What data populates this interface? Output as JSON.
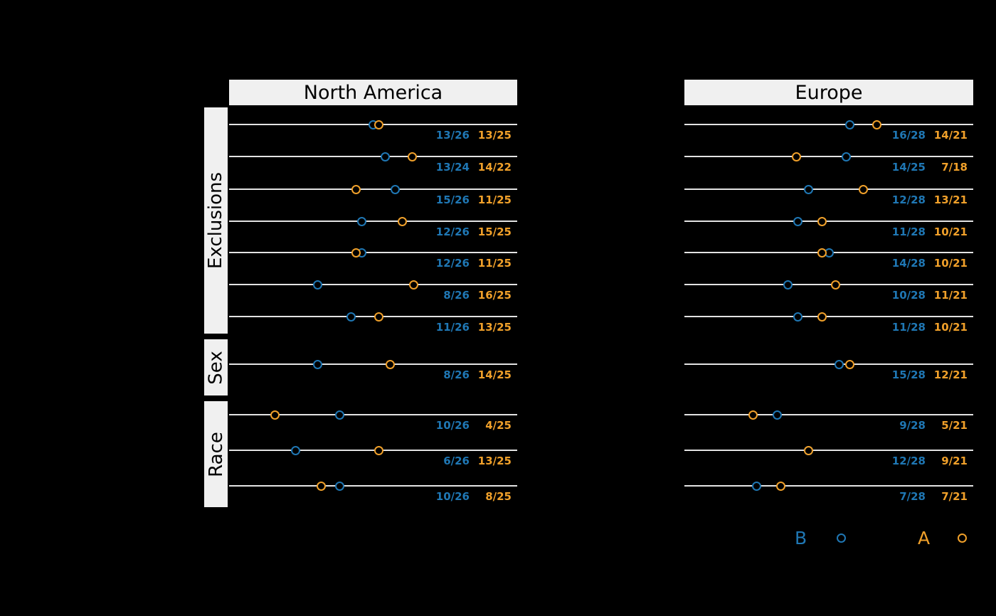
{
  "colors": {
    "background": "#000000",
    "label_box_bg": "#f0f0f0",
    "label_box_text": "#000000",
    "axis_line": "#e3e3e3",
    "series_b": "#1f77b4",
    "series_a": "#f0a02a"
  },
  "chart_data": {
    "type": "scatter",
    "x_range": [
      0,
      1
    ],
    "grid": false,
    "legend_position": "bottom-right",
    "series": [
      {
        "name": "B",
        "color": "#1f77b4",
        "marker": "open-circle"
      },
      {
        "name": "A",
        "color": "#f0a02a",
        "marker": "open-circle"
      }
    ],
    "row_groups": [
      {
        "label": "Exclusions",
        "rows": 7
      },
      {
        "label": "Sex",
        "rows": 1
      },
      {
        "label": "Race",
        "rows": 3
      }
    ],
    "panels": [
      {
        "title": "North America",
        "rows": [
          {
            "group": "Exclusions",
            "b": "13/26",
            "a": "13/25"
          },
          {
            "group": "Exclusions",
            "b": "13/24",
            "a": "14/22"
          },
          {
            "group": "Exclusions",
            "b": "15/26",
            "a": "11/25"
          },
          {
            "group": "Exclusions",
            "b": "12/26",
            "a": "15/25"
          },
          {
            "group": "Exclusions",
            "b": "12/26",
            "a": "11/25"
          },
          {
            "group": "Exclusions",
            "b": "8/26",
            "a": "16/25"
          },
          {
            "group": "Exclusions",
            "b": "11/26",
            "a": "13/25"
          },
          {
            "group": "Sex",
            "b": "8/26",
            "a": "14/25"
          },
          {
            "group": "Race",
            "b": "10/26",
            "a": "4/25"
          },
          {
            "group": "Race",
            "b": "6/26",
            "a": "13/25"
          },
          {
            "group": "Race",
            "b": "10/26",
            "a": "8/25"
          }
        ]
      },
      {
        "title": "Europe",
        "rows": [
          {
            "group": "Exclusions",
            "b": "16/28",
            "a": "14/21"
          },
          {
            "group": "Exclusions",
            "b": "14/25",
            "a": "7/18"
          },
          {
            "group": "Exclusions",
            "b": "12/28",
            "a": "13/21"
          },
          {
            "group": "Exclusions",
            "b": "11/28",
            "a": "10/21"
          },
          {
            "group": "Exclusions",
            "b": "14/28",
            "a": "10/21"
          },
          {
            "group": "Exclusions",
            "b": "10/28",
            "a": "11/21"
          },
          {
            "group": "Exclusions",
            "b": "11/28",
            "a": "10/21"
          },
          {
            "group": "Sex",
            "b": "15/28",
            "a": "12/21"
          },
          {
            "group": "Race",
            "b": "9/28",
            "a": "5/21"
          },
          {
            "group": "Race",
            "b": "12/28",
            "a": "9/21"
          },
          {
            "group": "Race",
            "b": "7/28",
            "a": "7/21"
          }
        ]
      }
    ],
    "legend": {
      "b_label": "B",
      "a_label": "A"
    }
  }
}
